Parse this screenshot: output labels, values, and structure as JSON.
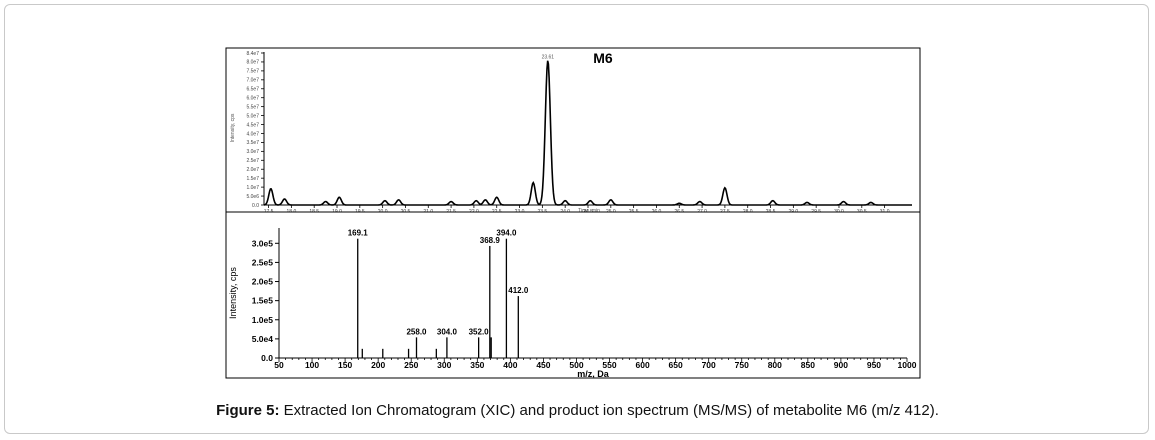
{
  "caption": {
    "label": "Figure 5:",
    "text": " Extracted Ion Chromatogram (XIC) and product ion spectrum (MS/MS) of metabolite M6 (m/z 412)."
  },
  "chart_data": [
    {
      "type": "line",
      "title": "M6",
      "xlabel": "Time, min",
      "ylabel": "Intensity, cps",
      "xlim": [
        17.4,
        31.6
      ],
      "ylim": [
        0,
        86000000.0
      ],
      "x_ticks": [
        "17.5",
        "18.0",
        "18.5",
        "19.0",
        "19.5",
        "20.0",
        "20.5",
        "21.0",
        "21.5",
        "22.0",
        "22.5",
        "23.0",
        "23.5",
        "24.0",
        "24.5",
        "25.0",
        "25.5",
        "26.0",
        "26.5",
        "27.0",
        "27.5",
        "28.0",
        "28.5",
        "29.0",
        "29.5",
        "30.0",
        "30.5",
        "31.0"
      ],
      "y_ticks": [
        "0.0",
        "5.0e6",
        "1.0e7",
        "1.5e7",
        "2.0e7",
        "2.5e7",
        "3.0e7",
        "3.5e7",
        "4.0e7",
        "4.5e7",
        "5.0e7",
        "5.5e7",
        "6.0e7",
        "6.5e7",
        "7.0e7",
        "7.5e7",
        "8.0e7",
        "8.4e7"
      ],
      "peaks": [
        {
          "rt": 17.55,
          "height": 9500000.0
        },
        {
          "rt": 17.85,
          "height": 3500000.0
        },
        {
          "rt": 18.75,
          "height": 2000000.0
        },
        {
          "rt": 19.05,
          "height": 4500000.0
        },
        {
          "rt": 20.05,
          "height": 2500000.0
        },
        {
          "rt": 20.35,
          "height": 3000000.0
        },
        {
          "rt": 21.5,
          "height": 2000000.0
        },
        {
          "rt": 22.05,
          "height": 2500000.0
        },
        {
          "rt": 22.25,
          "height": 3000000.0
        },
        {
          "rt": 22.5,
          "height": 4500000.0
        },
        {
          "rt": 23.3,
          "height": 13000000.0
        },
        {
          "rt": 23.62,
          "height": 84000000.0,
          "label": "23.61"
        },
        {
          "rt": 24.0,
          "height": 2500000.0
        },
        {
          "rt": 24.55,
          "height": 2500000.0
        },
        {
          "rt": 25.0,
          "height": 3000000.0
        },
        {
          "rt": 26.5,
          "height": 1000000.0
        },
        {
          "rt": 26.95,
          "height": 2000000.0
        },
        {
          "rt": 27.5,
          "height": 10000000.0
        },
        {
          "rt": 28.55,
          "height": 2500000.0
        },
        {
          "rt": 29.3,
          "height": 1500000.0
        },
        {
          "rt": 30.1,
          "height": 2000000.0
        },
        {
          "rt": 30.7,
          "height": 1500000.0
        }
      ]
    },
    {
      "type": "bar",
      "title": "",
      "xlabel": "m/z, Da",
      "ylabel": "Intensity, cps",
      "xlim": [
        50,
        1000
      ],
      "ylim": [
        0,
        340000
      ],
      "x_ticks": [
        50,
        100,
        150,
        200,
        250,
        300,
        350,
        400,
        450,
        500,
        550,
        600,
        650,
        700,
        750,
        800,
        850,
        900,
        950,
        1000
      ],
      "y_ticks": [
        {
          "value": 0,
          "label": "0.0"
        },
        {
          "value": 50000,
          "label": "5.0e4"
        },
        {
          "value": 100000,
          "label": "1.0e5"
        },
        {
          "value": 150000,
          "label": "1.5e5"
        },
        {
          "value": 200000,
          "label": "2.0e5"
        },
        {
          "value": 250000,
          "label": "2.5e5"
        },
        {
          "value": 300000,
          "label": "3.0e5"
        }
      ],
      "bars": [
        {
          "mz": 169.1,
          "value": 312000,
          "label": "169.1"
        },
        {
          "mz": 176,
          "value": 24000
        },
        {
          "mz": 207,
          "value": 24000
        },
        {
          "mz": 246,
          "value": 24000
        },
        {
          "mz": 258.0,
          "value": 54000,
          "label": "258.0"
        },
        {
          "mz": 288,
          "value": 24000
        },
        {
          "mz": 304.0,
          "value": 54000,
          "label": "304.0"
        },
        {
          "mz": 352.0,
          "value": 54000,
          "label": "352.0"
        },
        {
          "mz": 368.9,
          "value": 293000,
          "label": "368.9"
        },
        {
          "mz": 371,
          "value": 54000
        },
        {
          "mz": 394.0,
          "value": 312000,
          "label": "394.0"
        },
        {
          "mz": 412.0,
          "value": 162000,
          "label": "412.0"
        }
      ]
    }
  ]
}
